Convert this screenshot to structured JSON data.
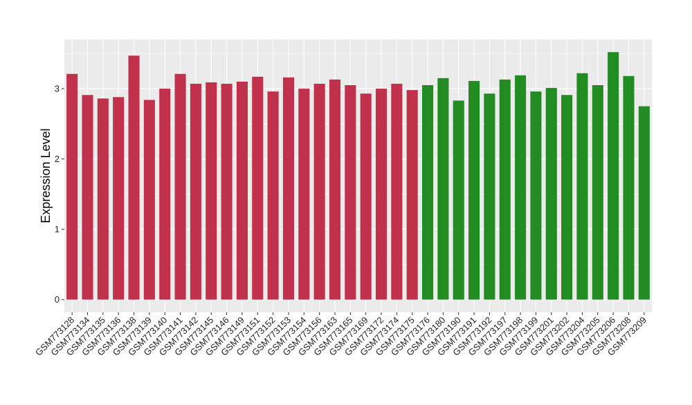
{
  "chart_data": {
    "type": "bar",
    "ylabel": "Expression Level",
    "xlabel": "",
    "ylim": [
      -0.18,
      3.7
    ],
    "yticks": [
      0,
      1,
      2,
      3
    ],
    "grid": true,
    "legend": "none",
    "colors": {
      "group_a": "#c0314b",
      "group_b": "#228b22",
      "panel": "#ebebeb",
      "grid": "#ffffff"
    },
    "categories": [
      "GSM773128",
      "GSM773134",
      "GSM773135",
      "GSM773136",
      "GSM773138",
      "GSM773139",
      "GSM773140",
      "GSM773141",
      "GSM773142",
      "GSM773145",
      "GSM773146",
      "GSM773149",
      "GSM773151",
      "GSM773152",
      "GSM773153",
      "GSM773154",
      "GSM773156",
      "GSM773163",
      "GSM773165",
      "GSM773169",
      "GSM773172",
      "GSM773174",
      "GSM773175",
      "GSM773176",
      "GSM773180",
      "GSM773190",
      "GSM773191",
      "GSM773192",
      "GSM773197",
      "GSM773198",
      "GSM773199",
      "GSM773201",
      "GSM773202",
      "GSM773204",
      "GSM773205",
      "GSM773206",
      "GSM773208",
      "GSM773209"
    ],
    "values": [
      3.21,
      2.91,
      2.86,
      2.88,
      3.47,
      2.84,
      3.0,
      3.21,
      3.07,
      3.09,
      3.07,
      3.1,
      3.17,
      2.96,
      3.16,
      3.0,
      3.07,
      3.13,
      3.05,
      2.93,
      3.0,
      3.07,
      2.98,
      3.05,
      3.15,
      2.83,
      3.11,
      2.93,
      3.13,
      3.19,
      2.96,
      3.01,
      2.91,
      3.22,
      3.05,
      3.52,
      3.18,
      2.75
    ],
    "groups": [
      "a",
      "a",
      "a",
      "a",
      "a",
      "a",
      "a",
      "a",
      "a",
      "a",
      "a",
      "a",
      "a",
      "a",
      "a",
      "a",
      "a",
      "a",
      "a",
      "a",
      "a",
      "a",
      "a",
      "b",
      "b",
      "b",
      "b",
      "b",
      "b",
      "b",
      "b",
      "b",
      "b",
      "b",
      "b",
      "b",
      "b",
      "b"
    ]
  }
}
